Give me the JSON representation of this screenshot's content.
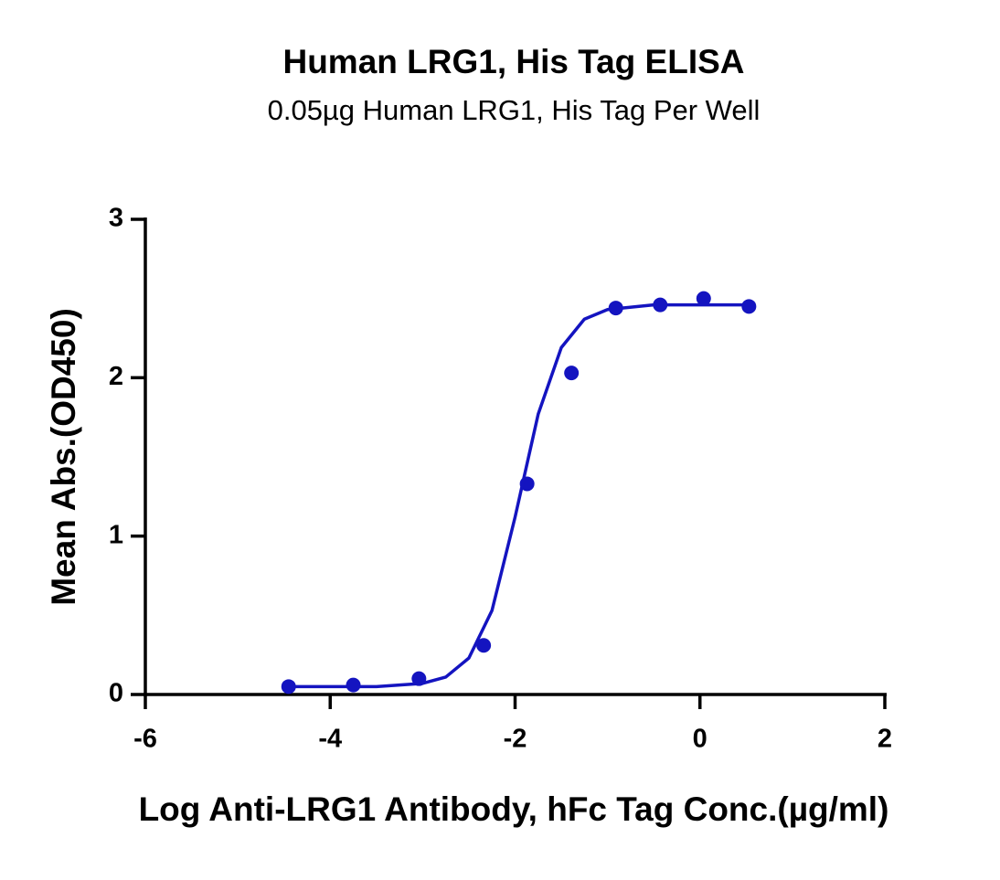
{
  "chart_data": {
    "type": "scatter",
    "title": "Human LRG1, His Tag ELISA",
    "subtitle": "0.05µg Human LRG1, His Tag Per Well",
    "x_label": "Log Anti-LRG1 Antibody, hFc Tag Conc.(µg/ml)",
    "y_label": "Mean Abs.(OD450)",
    "xlim": [
      -6,
      2
    ],
    "xticks": [
      -6,
      -4,
      -2,
      0,
      2
    ],
    "ylim": [
      0,
      3
    ],
    "yticks": [
      0,
      1,
      2,
      3
    ],
    "series": [
      {
        "mode": "markers",
        "color": "#1414c0",
        "x": [
          -4.45,
          -3.75,
          -3.04,
          -2.34,
          -1.87,
          -1.39,
          -0.91,
          -0.43,
          0.04,
          0.53
        ],
        "values": [
          0.05,
          0.06,
          0.1,
          0.31,
          1.33,
          2.03,
          2.44,
          2.46,
          2.5,
          2.45
        ]
      },
      {
        "mode": "line",
        "color": "#1414c0",
        "x": [
          -4.45,
          -4.0,
          -3.5,
          -3.0,
          -2.75,
          -2.5,
          -2.25,
          -2.0,
          -1.75,
          -1.5,
          -1.25,
          -1.0,
          -0.5,
          0,
          0.53
        ],
        "values": [
          0.05,
          0.05,
          0.05,
          0.07,
          0.11,
          0.23,
          0.53,
          1.12,
          1.77,
          2.19,
          2.37,
          2.43,
          2.46,
          2.46,
          2.46
        ]
      }
    ]
  }
}
